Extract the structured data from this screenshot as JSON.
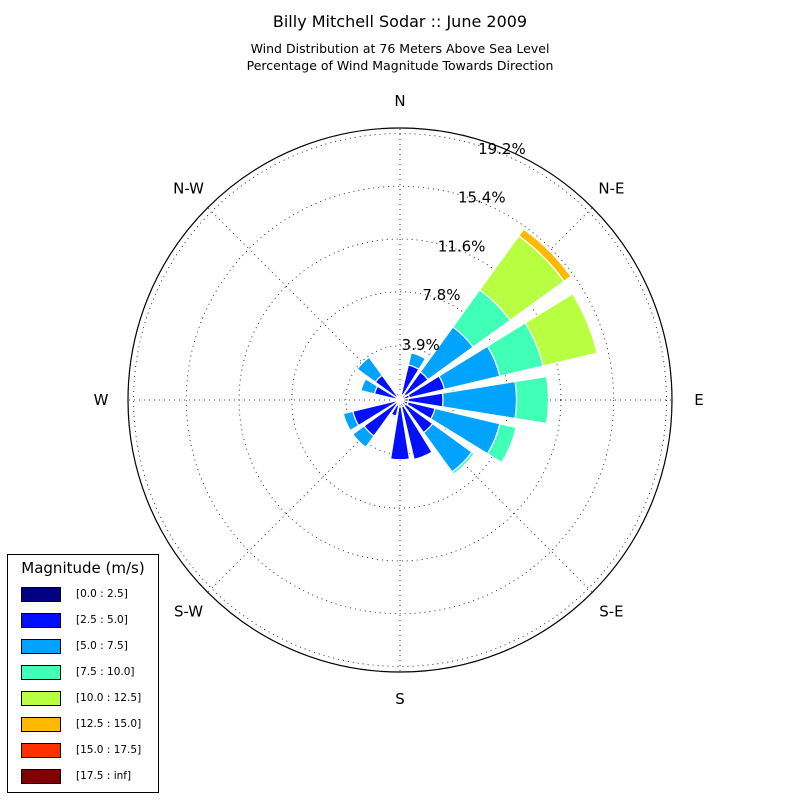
{
  "chart_data": {
    "type": "windrose",
    "title": "Billy Mitchell Sodar :: June 2009",
    "subtitle": [
      "Wind Distribution at 76 Meters Above Sea Level",
      "Percentage of Wind Magnitude Towards Direction"
    ],
    "directions": [
      "N",
      "N-E",
      "E",
      "S-E",
      "S",
      "S-W",
      "W",
      "N-W"
    ],
    "radial_ticks": [
      "3.9%",
      "7.8%",
      "11.6%",
      "15.4%",
      "19.2%"
    ],
    "radial_tick_values": [
      3.9,
      7.8,
      11.6,
      15.4,
      19.2
    ],
    "rmax": 19.6,
    "grid": true,
    "legend": {
      "title": "Magnitude (m/s)",
      "placement": "lower-left",
      "bins": [
        "[0.0 : 2.5]",
        "[2.5 : 5.0]",
        "[5.0 : 7.5]",
        "[7.5 : 10.0]",
        "[10.0 : 12.5]",
        "[12.5 : 15.0]",
        "[15.0 : 17.5]",
        "[17.5 : inf]"
      ],
      "colors": [
        "#000080",
        "#0010ff",
        "#00a4ff",
        "#40ffb7",
        "#b7ff40",
        "#ffb900",
        "#ff3000",
        "#800000"
      ]
    },
    "sectors": [
      {
        "angle": 0,
        "cumulative": [
          0.4,
          0.5,
          0.5,
          0.5,
          0.5,
          0.5,
          0.5,
          0.5
        ]
      },
      {
        "angle": 22.5,
        "cumulative": [
          0.4,
          2.6,
          3.5,
          3.5,
          3.5,
          3.5,
          3.5,
          3.5
        ]
      },
      {
        "angle": 45,
        "cumulative": [
          0.5,
          2.5,
          6.5,
          9.8,
          14.6,
          15.2,
          15.2,
          15.2
        ]
      },
      {
        "angle": 67.5,
        "cumulative": [
          0.7,
          3.3,
          7.4,
          10.6,
          14.6,
          14.6,
          14.6,
          14.6
        ]
      },
      {
        "angle": 90,
        "cumulative": [
          0.6,
          3.1,
          8.4,
          10.7,
          10.7,
          10.7,
          10.7,
          10.7
        ]
      },
      {
        "angle": 112.5,
        "cumulative": [
          0.6,
          2.6,
          7.4,
          8.6,
          8.6,
          8.6,
          8.6,
          8.6
        ]
      },
      {
        "angle": 135,
        "cumulative": [
          0.5,
          2.9,
          6.4,
          6.6,
          6.6,
          6.6,
          6.6,
          6.6
        ]
      },
      {
        "angle": 157.5,
        "cumulative": [
          0.5,
          4.4,
          4.4,
          4.4,
          4.4,
          4.4,
          4.4,
          4.4
        ]
      },
      {
        "angle": 180,
        "cumulative": [
          0.5,
          4.3,
          4.3,
          4.3,
          4.3,
          4.3,
          4.3,
          4.3
        ]
      },
      {
        "angle": 202.5,
        "cumulative": [
          0.4,
          1.2,
          1.3,
          1.3,
          1.3,
          1.3,
          1.3,
          1.3
        ]
      },
      {
        "angle": 225,
        "cumulative": [
          0.3,
          3.2,
          4.2,
          4.2,
          4.2,
          4.2,
          4.2,
          4.2
        ]
      },
      {
        "angle": 247.5,
        "cumulative": [
          0.3,
          3.5,
          4.2,
          4.2,
          4.2,
          4.2,
          4.2,
          4.2
        ]
      },
      {
        "angle": 270,
        "cumulative": [
          0.2,
          0.4,
          0.4,
          0.4,
          0.4,
          0.4,
          0.4,
          0.4
        ]
      },
      {
        "angle": 292.5,
        "cumulative": [
          0.2,
          1.9,
          2.9,
          2.9,
          2.9,
          2.9,
          2.9,
          2.9
        ]
      },
      {
        "angle": 315,
        "cumulative": [
          0.3,
          2.2,
          3.8,
          3.8,
          3.8,
          3.8,
          3.8,
          3.8
        ]
      },
      {
        "angle": 337.5,
        "cumulative": [
          0.3,
          0.5,
          0.5,
          0.5,
          0.5,
          0.5,
          0.5,
          0.5
        ]
      }
    ]
  }
}
